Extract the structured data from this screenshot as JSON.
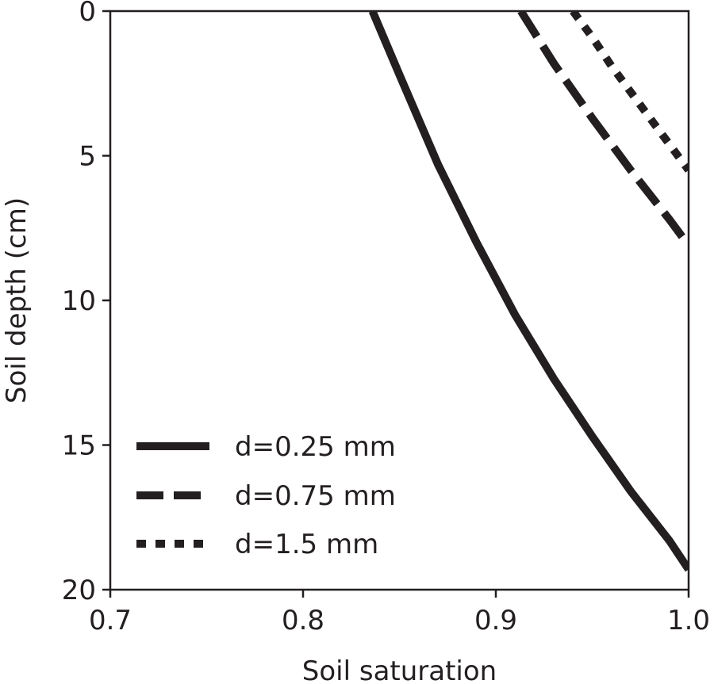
{
  "chart_data": {
    "type": "line",
    "title": "",
    "xlabel": "Soil saturation",
    "ylabel": "Soil depth (cm)",
    "xlim": [
      0.7,
      1.0
    ],
    "ylim": [
      20,
      0
    ],
    "y_inverted": true,
    "grid": false,
    "legend_position": "lower-left",
    "x_ticks": [
      "0.7",
      "0.8",
      "0.9",
      "1.0"
    ],
    "y_ticks": [
      "0",
      "5",
      "10",
      "15",
      "20"
    ],
    "colors": {
      "line": "#231f20",
      "axis": "#231f20",
      "background": "#ffffff"
    },
    "series": [
      {
        "name": "d=0.25 mm",
        "style": "solid",
        "x": [
          0.836,
          0.85,
          0.87,
          0.89,
          0.91,
          0.93,
          0.95,
          0.97,
          0.99,
          1.0
        ],
        "y": [
          0,
          2.2,
          5.3,
          8.0,
          10.5,
          12.7,
          14.7,
          16.6,
          18.3,
          19.3
        ]
      },
      {
        "name": "d=0.75 mm",
        "style": "dashed",
        "x": [
          0.913,
          0.93,
          0.95,
          0.97,
          0.99,
          1.0
        ],
        "y": [
          0,
          1.8,
          3.7,
          5.5,
          7.2,
          8.1
        ]
      },
      {
        "name": "d=1.5 mm",
        "style": "dotted",
        "x": [
          0.94,
          0.95,
          0.96,
          0.97,
          0.98,
          0.99,
          1.0
        ],
        "y": [
          0,
          0.9,
          1.9,
          2.8,
          3.7,
          4.6,
          5.5
        ]
      }
    ]
  }
}
